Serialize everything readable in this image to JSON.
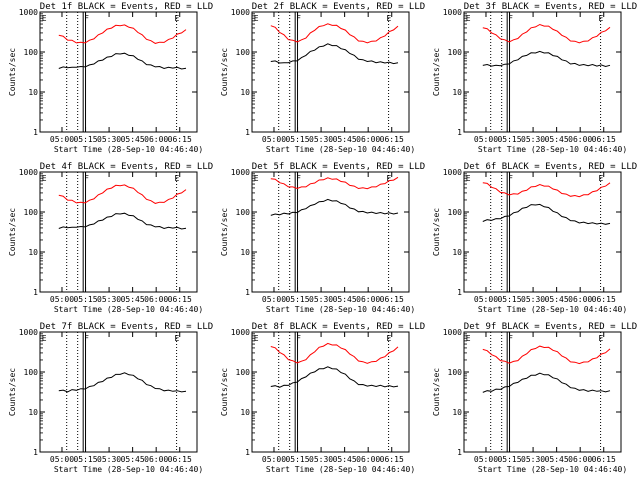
{
  "chart_data": [
    {
      "type": "line",
      "title": "Det 1f BLACK = Events, RED = LLD",
      "xlabel": "Start Time (28-Sep-10 04:46:40)",
      "ylabel": "Counts/sec",
      "xticks": [
        "05:00",
        "05:15",
        "05:30",
        "05:45",
        "06:00",
        "06:15"
      ],
      "yticks": [
        "1",
        "10",
        "100",
        "1000"
      ],
      "ylim": [
        1,
        1000
      ],
      "yscale": "log",
      "markers": [
        "E",
        "F",
        "E"
      ],
      "series": [
        {
          "color": "#ff0000",
          "values": [
            270,
            240,
            205,
            190,
            175,
            170,
            175,
            190,
            220,
            260,
            310,
            360,
            410,
            450,
            470,
            460,
            430,
            380,
            320,
            260,
            215,
            185,
            170,
            170,
            180,
            200,
            230,
            270,
            310,
            350
          ]
        },
        {
          "color": "#000000",
          "values": [
            40,
            41,
            42,
            40,
            43,
            42,
            44,
            46,
            52,
            58,
            65,
            72,
            80,
            88,
            92,
            90,
            85,
            78,
            68,
            58,
            50,
            46,
            44,
            42,
            40,
            40,
            41,
            40,
            39,
            38
          ]
        }
      ]
    },
    {
      "type": "line",
      "title": "Det 2f BLACK = Events, RED = LLD",
      "xlabel": "Start Time (28-Sep-10 04:46:40)",
      "ylabel": "Counts/sec",
      "xticks": [
        "05:00",
        "05:15",
        "05:30",
        "05:45",
        "06:00",
        "06:15"
      ],
      "yticks": [
        "1",
        "10",
        "100",
        "1000"
      ],
      "ylim": [
        1,
        1000
      ],
      "yscale": "log",
      "markers": [
        "E",
        "F",
        "E"
      ],
      "series": [
        {
          "color": "#ff0000",
          "values": [
            470,
            400,
            320,
            260,
            210,
            190,
            185,
            195,
            230,
            290,
            360,
            420,
            470,
            490,
            480,
            450,
            400,
            340,
            280,
            230,
            195,
            180,
            175,
            180,
            195,
            220,
            260,
            310,
            370,
            430
          ]
        },
        {
          "color": "#000000",
          "values": [
            60,
            58,
            55,
            52,
            56,
            58,
            62,
            70,
            85,
            100,
            115,
            130,
            145,
            155,
            150,
            140,
            125,
            110,
            95,
            80,
            68,
            62,
            60,
            58,
            56,
            55,
            55,
            54,
            53,
            52
          ]
        }
      ]
    },
    {
      "type": "line",
      "title": "Det 3f BLACK = Events, RED = LLD",
      "xlabel": "Start Time (28-Sep-10 04:46:40)",
      "ylabel": "Counts/sec",
      "xticks": [
        "05:00",
        "05:15",
        "05:30",
        "05:45",
        "06:00",
        "06:15"
      ],
      "yticks": [
        "1",
        "10",
        "100",
        "1000"
      ],
      "ylim": [
        1,
        1000
      ],
      "yscale": "log",
      "markers": [
        "E",
        "F",
        "E"
      ],
      "series": [
        {
          "color": "#ff0000",
          "values": [
            420,
            370,
            310,
            260,
            220,
            195,
            185,
            195,
            225,
            270,
            330,
            390,
            440,
            470,
            460,
            430,
            380,
            320,
            270,
            225,
            195,
            180,
            175,
            180,
            195,
            220,
            255,
            300,
            350,
            400
          ]
        },
        {
          "color": "#000000",
          "values": [
            48,
            47,
            46,
            45,
            47,
            48,
            52,
            58,
            66,
            75,
            85,
            92,
            98,
            100,
            98,
            92,
            84,
            75,
            66,
            58,
            52,
            50,
            48,
            47,
            47,
            47,
            46,
            46,
            45,
            45
          ]
        }
      ]
    },
    {
      "type": "line",
      "title": "Det 4f BLACK = Events, RED = LLD",
      "xlabel": "Start Time (28-Sep-10 04:46:40)",
      "ylabel": "Counts/sec",
      "xticks": [
        "05:00",
        "05:15",
        "05:30",
        "05:45",
        "06:00",
        "06:15"
      ],
      "yticks": [
        "1",
        "10",
        "100",
        "1000"
      ],
      "ylim": [
        1,
        1000
      ],
      "yscale": "log",
      "markers": [
        "E",
        "F",
        "E"
      ],
      "series": [
        {
          "color": "#ff0000",
          "values": [
            270,
            240,
            205,
            190,
            175,
            170,
            175,
            190,
            220,
            260,
            310,
            360,
            410,
            450,
            470,
            460,
            430,
            380,
            320,
            260,
            215,
            185,
            170,
            170,
            180,
            200,
            230,
            270,
            310,
            350
          ]
        },
        {
          "color": "#000000",
          "values": [
            40,
            41,
            42,
            40,
            43,
            42,
            44,
            46,
            52,
            58,
            65,
            72,
            80,
            88,
            92,
            90,
            85,
            78,
            68,
            58,
            50,
            46,
            44,
            42,
            40,
            40,
            41,
            40,
            39,
            38
          ]
        }
      ]
    },
    {
      "type": "line",
      "title": "Det 5f BLACK = Events, RED = LLD",
      "xlabel": "Start Time (28-Sep-10 04:46:40)",
      "ylabel": "Counts/sec",
      "xticks": [
        "05:00",
        "05:15",
        "05:30",
        "05:45",
        "06:00",
        "06:15"
      ],
      "yticks": [
        "1",
        "10",
        "100",
        "1000"
      ],
      "ylim": [
        1,
        1000
      ],
      "yscale": "log",
      "markers": [
        "E",
        "F",
        "E"
      ],
      "series": [
        {
          "color": "#ff0000",
          "values": [
            700,
            640,
            560,
            490,
            440,
            410,
            400,
            410,
            440,
            490,
            550,
            610,
            660,
            690,
            680,
            650,
            600,
            540,
            480,
            430,
            400,
            390,
            395,
            410,
            440,
            480,
            530,
            590,
            650,
            710
          ]
        },
        {
          "color": "#000000",
          "values": [
            85,
            86,
            88,
            90,
            92,
            95,
            100,
            110,
            125,
            140,
            160,
            175,
            190,
            200,
            195,
            185,
            170,
            150,
            130,
            115,
            105,
            100,
            98,
            96,
            95,
            94,
            93,
            92,
            92,
            91
          ]
        }
      ]
    },
    {
      "type": "line",
      "title": "Det 6f BLACK = Events, RED = LLD",
      "xlabel": "Start Time (28-Sep-10 04:46:40)",
      "ylabel": "Counts/sec",
      "xticks": [
        "05:00",
        "05:15",
        "05:30",
        "05:45",
        "06:00",
        "06:15"
      ],
      "yticks": [
        "1",
        "10",
        "100",
        "1000"
      ],
      "ylim": [
        1,
        1000
      ],
      "yscale": "log",
      "markers": [
        "E",
        "F",
        "E"
      ],
      "series": [
        {
          "color": "#ff0000",
          "values": [
            560,
            500,
            430,
            370,
            320,
            290,
            275,
            275,
            290,
            320,
            360,
            410,
            450,
            470,
            460,
            430,
            390,
            340,
            300,
            270,
            255,
            250,
            250,
            260,
            280,
            310,
            350,
            400,
            460,
            520
          ]
        },
        {
          "color": "#000000",
          "values": [
            60,
            62,
            64,
            66,
            70,
            75,
            82,
            92,
            105,
            120,
            135,
            148,
            155,
            150,
            140,
            125,
            108,
            92,
            80,
            70,
            63,
            58,
            55,
            54,
            53,
            52,
            52,
            51,
            51,
            50
          ]
        }
      ]
    },
    {
      "type": "line",
      "title": "Det 7f BLACK = Events, RED = LLD",
      "xlabel": "Start Time (28-Sep-10 04:46:40)",
      "ylabel": "Counts/sec",
      "xticks": [
        "05:00",
        "05:15",
        "05:30",
        "05:45",
        "06:00",
        "06:15"
      ],
      "yticks": [
        "1",
        "10",
        "100",
        "1000"
      ],
      "ylim": [
        1,
        1000
      ],
      "yscale": "log",
      "markers": [
        "E",
        "F",
        "E"
      ],
      "series": [
        {
          "color": "#000000",
          "values": [
            35,
            34,
            33,
            35,
            36,
            37,
            39,
            42,
            47,
            53,
            60,
            68,
            76,
            84,
            90,
            92,
            88,
            80,
            70,
            60,
            50,
            44,
            40,
            37,
            35,
            34,
            34,
            33,
            33,
            32
          ]
        }
      ]
    },
    {
      "type": "line",
      "title": "Det 8f BLACK = Events, RED = LLD",
      "xlabel": "Start Time (28-Sep-10 04:46:40)",
      "ylabel": "Counts/sec",
      "xticks": [
        "05:00",
        "05:15",
        "05:30",
        "05:45",
        "06:00",
        "06:15"
      ],
      "yticks": [
        "1",
        "10",
        "100",
        "1000"
      ],
      "ylim": [
        1,
        1000
      ],
      "yscale": "log",
      "markers": [
        "E",
        "F",
        "E"
      ],
      "series": [
        {
          "color": "#ff0000",
          "values": [
            450,
            390,
            320,
            260,
            210,
            185,
            175,
            180,
            210,
            260,
            330,
            400,
            460,
            500,
            490,
            460,
            410,
            350,
            290,
            235,
            195,
            175,
            170,
            175,
            190,
            215,
            250,
            295,
            350,
            410
          ]
        },
        {
          "color": "#000000",
          "values": [
            45,
            44,
            43,
            45,
            48,
            52,
            58,
            66,
            78,
            90,
            104,
            116,
            125,
            130,
            125,
            115,
            100,
            85,
            70,
            58,
            50,
            47,
            46,
            45,
            45,
            45,
            44,
            44,
            44,
            43
          ]
        }
      ]
    },
    {
      "type": "line",
      "title": "Det 9f BLACK = Events, RED = LLD",
      "xlabel": "Start Time (28-Sep-10 04:46:40)",
      "ylabel": "Counts/sec",
      "xticks": [
        "05:00",
        "05:15",
        "05:30",
        "05:45",
        "06:00",
        "06:15"
      ],
      "yticks": [
        "1",
        "10",
        "100",
        "1000"
      ],
      "ylim": [
        1,
        1000
      ],
      "yscale": "log",
      "markers": [
        "E",
        "F",
        "E"
      ],
      "series": [
        {
          "color": "#ff0000",
          "values": [
            380,
            330,
            280,
            235,
            200,
            180,
            172,
            178,
            200,
            240,
            295,
            350,
            400,
            430,
            425,
            400,
            360,
            310,
            260,
            215,
            185,
            170,
            168,
            172,
            185,
            205,
            235,
            270,
            315,
            365
          ]
        },
        {
          "color": "#000000",
          "values": [
            32,
            33,
            34,
            36,
            38,
            41,
            45,
            50,
            57,
            64,
            72,
            80,
            86,
            90,
            88,
            82,
            74,
            65,
            56,
            48,
            42,
            38,
            36,
            35,
            34,
            34,
            34,
            33,
            33,
            33
          ]
        }
      ]
    }
  ]
}
